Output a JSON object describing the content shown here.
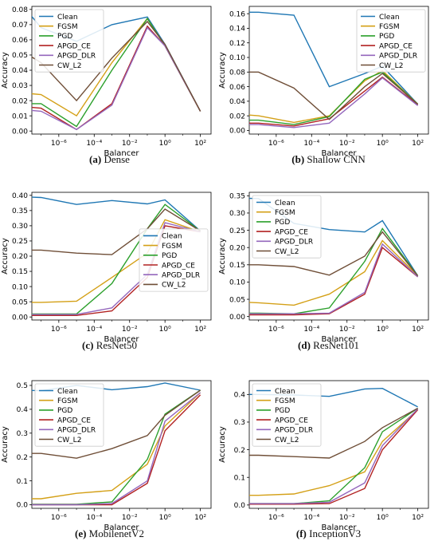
{
  "colors": {
    "Clean": "#1f77b4",
    "FGSM": "#d4a017",
    "PGD": "#2ca02c",
    "APGD_CE": "#b22222",
    "APGD_DLR": "#9467bd",
    "CW_L2": "#6f4e37"
  },
  "chart_data": [
    {
      "type": "line",
      "caption_letter": "(a)",
      "caption_text": "Dense",
      "xlabel": "Balancer",
      "ylabel": "Accuracy",
      "xscale": "log",
      "xlim": [
        3e-08,
        400
      ],
      "ylim": [
        -0.002,
        0.082
      ],
      "yticks": [
        "0.00",
        "0.01",
        "0.02",
        "0.03",
        "0.04",
        "0.05",
        "0.06",
        "0.07",
        "0.08"
      ],
      "ytick_values": [
        0,
        0.01,
        0.02,
        0.03,
        0.04,
        0.05,
        0.06,
        0.07,
        0.08
      ],
      "xticks": [
        "10⁻⁶",
        "10⁻⁴",
        "10⁻²",
        "10⁰",
        "10²"
      ],
      "xtick_values": [
        1e-06,
        0.0001,
        0.01,
        1,
        100
      ],
      "legend_position": "upper-left",
      "x": [
        1e-08,
        1e-07,
        1e-05,
        0.001,
        0.1,
        1,
        100
      ],
      "series": [
        {
          "name": "Clean",
          "values": [
            0.082,
            0.068,
            0.059,
            0.07,
            0.075,
            0.057,
            0.013
          ]
        },
        {
          "name": "FGSM",
          "values": [
            0.025,
            0.024,
            0.01,
            0.045,
            0.074,
            0.056,
            0.013
          ]
        },
        {
          "name": "PGD",
          "values": [
            0.018,
            0.018,
            0.003,
            0.04,
            0.074,
            0.056,
            0.013
          ]
        },
        {
          "name": "APGD_CE",
          "values": [
            0.016,
            0.015,
            0.001,
            0.018,
            0.069,
            0.056,
            0.013
          ]
        },
        {
          "name": "APGD_DLR",
          "values": [
            0.014,
            0.013,
            0.001,
            0.017,
            0.068,
            0.056,
            0.013
          ]
        },
        {
          "name": "CW_L2",
          "values": [
            0.052,
            0.045,
            0.02,
            0.048,
            0.072,
            0.057,
            0.013
          ]
        }
      ]
    },
    {
      "type": "line",
      "caption_letter": "(b)",
      "caption_text": "Shallow CNN",
      "xlabel": "Balancer",
      "ylabel": "Accuracy",
      "xscale": "log",
      "xlim": [
        3e-08,
        400
      ],
      "ylim": [
        -0.005,
        0.17
      ],
      "yticks": [
        "0.00",
        "0.02",
        "0.04",
        "0.06",
        "0.08",
        "0.10",
        "0.12",
        "0.14",
        "0.16"
      ],
      "ytick_values": [
        0,
        0.02,
        0.04,
        0.06,
        0.08,
        0.1,
        0.12,
        0.14,
        0.16
      ],
      "xticks": [
        "10⁻⁶",
        "10⁻⁴",
        "10⁻²",
        "10⁰",
        "10²"
      ],
      "xtick_values": [
        1e-06,
        0.0001,
        0.01,
        1,
        100
      ],
      "legend_position": "upper-right",
      "x": [
        1e-08,
        1e-07,
        1e-05,
        0.001,
        0.1,
        1,
        100
      ],
      "series": [
        {
          "name": "Clean",
          "values": [
            0.162,
            0.162,
            0.158,
            0.06,
            0.078,
            0.088,
            0.036
          ]
        },
        {
          "name": "FGSM",
          "values": [
            0.022,
            0.02,
            0.011,
            0.02,
            0.068,
            0.082,
            0.036
          ]
        },
        {
          "name": "PGD",
          "values": [
            0.014,
            0.014,
            0.008,
            0.019,
            0.07,
            0.08,
            0.036
          ]
        },
        {
          "name": "APGD_CE",
          "values": [
            0.01,
            0.01,
            0.006,
            0.016,
            0.054,
            0.073,
            0.035
          ]
        },
        {
          "name": "APGD_DLR",
          "values": [
            0.008,
            0.008,
            0.004,
            0.01,
            0.05,
            0.072,
            0.034
          ]
        },
        {
          "name": "CW_L2",
          "values": [
            0.08,
            0.08,
            0.058,
            0.015,
            0.06,
            0.078,
            0.036
          ]
        }
      ]
    },
    {
      "type": "line",
      "caption_letter": "(c)",
      "caption_text": "ResNet50",
      "xlabel": "Balancer",
      "ylabel": "Accuracy",
      "xscale": "log",
      "xlim": [
        3e-08,
        400
      ],
      "ylim": [
        -0.01,
        0.41
      ],
      "yticks": [
        "0.00",
        "0.05",
        "0.10",
        "0.15",
        "0.20",
        "0.25",
        "0.30",
        "0.35",
        "0.40"
      ],
      "ytick_values": [
        0,
        0.05,
        0.1,
        0.15,
        0.2,
        0.25,
        0.3,
        0.35,
        0.4
      ],
      "xticks": [
        "10⁻⁶",
        "10⁻⁴",
        "10⁻²",
        "10⁰",
        "10²"
      ],
      "xtick_values": [
        1e-06,
        0.0001,
        0.01,
        1,
        100
      ],
      "legend_position": "center-right",
      "x": [
        1e-08,
        1e-07,
        1e-05,
        0.001,
        0.1,
        1,
        100
      ],
      "series": [
        {
          "name": "Clean",
          "values": [
            0.395,
            0.393,
            0.37,
            0.383,
            0.372,
            0.385,
            0.283
          ]
        },
        {
          "name": "FGSM",
          "values": [
            0.048,
            0.048,
            0.052,
            0.13,
            0.21,
            0.32,
            0.28
          ]
        },
        {
          "name": "PGD",
          "values": [
            0.01,
            0.01,
            0.01,
            0.11,
            0.29,
            0.37,
            0.283
          ]
        },
        {
          "name": "APGD_CE",
          "values": [
            0.005,
            0.005,
            0.005,
            0.02,
            0.13,
            0.3,
            0.28
          ]
        },
        {
          "name": "APGD_DLR",
          "values": [
            0.008,
            0.008,
            0.008,
            0.03,
            0.14,
            0.31,
            0.28
          ]
        },
        {
          "name": "CW_L2",
          "values": [
            0.22,
            0.22,
            0.21,
            0.205,
            0.29,
            0.355,
            0.283
          ]
        }
      ]
    },
    {
      "type": "line",
      "caption_letter": "(d)",
      "caption_text": "ResNet101",
      "xlabel": "Balancer",
      "ylabel": "Accuracy",
      "xscale": "log",
      "xlim": [
        3e-08,
        400
      ],
      "ylim": [
        -0.01,
        0.36
      ],
      "yticks": [
        "0.00",
        "0.05",
        "0.10",
        "0.15",
        "0.20",
        "0.25",
        "0.30",
        "0.35"
      ],
      "ytick_values": [
        0,
        0.05,
        0.1,
        0.15,
        0.2,
        0.25,
        0.3,
        0.35
      ],
      "xticks": [
        "10⁻⁶",
        "10⁻⁴",
        "10⁻²",
        "10⁰",
        "10²"
      ],
      "xtick_values": [
        1e-06,
        0.0001,
        0.01,
        1,
        100
      ],
      "legend_position": "upper-left",
      "x": [
        1e-08,
        1e-07,
        1e-05,
        0.001,
        0.1,
        1,
        100
      ],
      "series": [
        {
          "name": "Clean",
          "values": [
            0.343,
            0.342,
            0.27,
            0.252,
            0.245,
            0.278,
            0.118
          ]
        },
        {
          "name": "FGSM",
          "values": [
            0.042,
            0.04,
            0.033,
            0.065,
            0.13,
            0.22,
            0.118
          ]
        },
        {
          "name": "PGD",
          "values": [
            0.01,
            0.01,
            0.008,
            0.025,
            0.16,
            0.255,
            0.118
          ]
        },
        {
          "name": "APGD_CE",
          "values": [
            0.005,
            0.005,
            0.005,
            0.008,
            0.065,
            0.2,
            0.115
          ]
        },
        {
          "name": "APGD_DLR",
          "values": [
            0.008,
            0.008,
            0.008,
            0.01,
            0.07,
            0.21,
            0.115
          ]
        },
        {
          "name": "CW_L2",
          "values": [
            0.15,
            0.15,
            0.145,
            0.12,
            0.175,
            0.245,
            0.118
          ]
        }
      ]
    },
    {
      "type": "line",
      "caption_letter": "(e)",
      "caption_text": "MobilenetV2",
      "xlabel": "Balancer",
      "ylabel": "Accuracy",
      "xscale": "log",
      "xlim": [
        3e-08,
        400
      ],
      "ylim": [
        -0.015,
        0.52
      ],
      "yticks": [
        "0.0",
        "0.1",
        "0.2",
        "0.3",
        "0.4",
        "0.5"
      ],
      "ytick_values": [
        0,
        0.1,
        0.2,
        0.3,
        0.4,
        0.5
      ],
      "xticks": [
        "10⁻⁶",
        "10⁻⁴",
        "10⁻²",
        "10⁰",
        "10²"
      ],
      "xtick_values": [
        1e-06,
        0.0001,
        0.01,
        1,
        100
      ],
      "legend_position": "upper-left",
      "x": [
        1e-08,
        1e-07,
        1e-05,
        0.001,
        0.1,
        1,
        100
      ],
      "series": [
        {
          "name": "Clean",
          "values": [
            0.48,
            0.478,
            0.5,
            0.482,
            0.495,
            0.51,
            0.48
          ]
        },
        {
          "name": "FGSM",
          "values": [
            0.025,
            0.025,
            0.048,
            0.06,
            0.17,
            0.33,
            0.47
          ]
        },
        {
          "name": "PGD",
          "values": [
            0.002,
            0.002,
            0.002,
            0.012,
            0.19,
            0.38,
            0.48
          ]
        },
        {
          "name": "APGD_CE",
          "values": [
            0.0,
            0.0,
            0.0,
            0.0,
            0.09,
            0.31,
            0.46
          ]
        },
        {
          "name": "APGD_DLR",
          "values": [
            0.0,
            0.0,
            0.0,
            0.005,
            0.1,
            0.35,
            0.47
          ]
        },
        {
          "name": "CW_L2",
          "values": [
            0.215,
            0.215,
            0.195,
            0.235,
            0.29,
            0.375,
            0.48
          ]
        }
      ]
    },
    {
      "type": "line",
      "caption_letter": "(f)",
      "caption_text": "InceptionV3",
      "xlabel": "Balancer",
      "ylabel": "Accuracy",
      "xscale": "log",
      "xlim": [
        3e-08,
        400
      ],
      "ylim": [
        -0.012,
        0.45
      ],
      "yticks": [
        "0.0",
        "0.1",
        "0.2",
        "0.3",
        "0.4"
      ],
      "ytick_values": [
        0,
        0.1,
        0.2,
        0.3,
        0.4
      ],
      "xticks": [
        "10⁻⁶",
        "10⁻⁴",
        "10⁻²",
        "10⁰",
        "10²"
      ],
      "xtick_values": [
        1e-06,
        0.0001,
        0.01,
        1,
        100
      ],
      "legend_position": "upper-left",
      "x": [
        1e-08,
        1e-07,
        1e-05,
        0.001,
        0.1,
        1,
        100
      ],
      "series": [
        {
          "name": "Clean",
          "values": [
            0.4,
            0.4,
            0.398,
            0.393,
            0.42,
            0.422,
            0.355
          ]
        },
        {
          "name": "FGSM",
          "values": [
            0.035,
            0.035,
            0.04,
            0.07,
            0.12,
            0.23,
            0.345
          ]
        },
        {
          "name": "PGD",
          "values": [
            0.005,
            0.005,
            0.005,
            0.015,
            0.135,
            0.265,
            0.35
          ]
        },
        {
          "name": "APGD_CE",
          "values": [
            0.003,
            0.003,
            0.003,
            0.005,
            0.06,
            0.2,
            0.345
          ]
        },
        {
          "name": "APGD_DLR",
          "values": [
            0.005,
            0.005,
            0.005,
            0.01,
            0.08,
            0.215,
            0.348
          ]
        },
        {
          "name": "CW_L2",
          "values": [
            0.18,
            0.18,
            0.175,
            0.17,
            0.23,
            0.28,
            0.35
          ]
        }
      ]
    }
  ]
}
